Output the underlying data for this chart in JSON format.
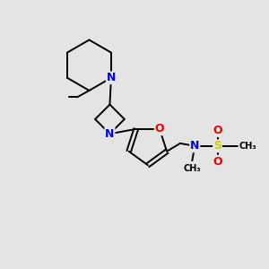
{
  "bg_color": "#e4e4e4",
  "atom_color_N": "#0000ee",
  "atom_color_O": "#ee0000",
  "atom_color_S": "#cccc00",
  "atom_color_C": "#000000",
  "bond_color": "#000000",
  "lw": 1.4,
  "figsize": [
    3.0,
    3.0
  ],
  "dpi": 100,
  "xlim": [
    0,
    10
  ],
  "ylim": [
    0,
    10
  ]
}
